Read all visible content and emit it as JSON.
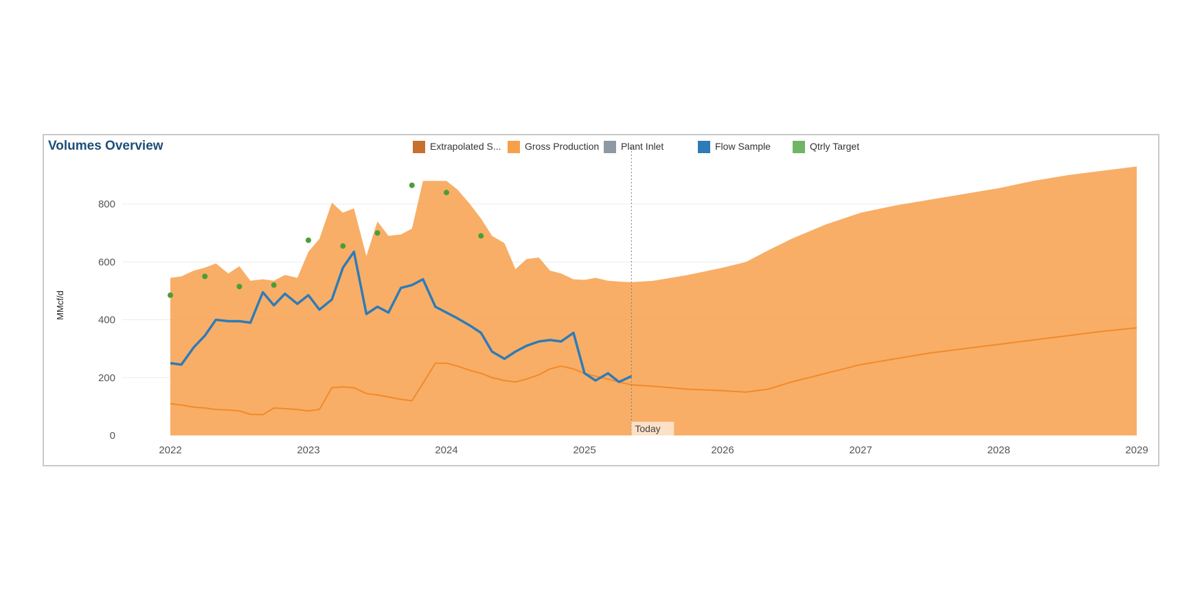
{
  "panel": {
    "title": "Volumes Overview"
  },
  "legend": [
    {
      "label": "Extrapolated S...",
      "color": "#c8702e"
    },
    {
      "label": "Gross Production",
      "color": "#f7a04b"
    },
    {
      "label": "Plant Inlet",
      "color": "#8e99a3"
    },
    {
      "label": "Flow Sample",
      "color": "#2e7bb8"
    },
    {
      "label": "Qtrly Target",
      "color": "#6fb565"
    }
  ],
  "today_label": "Today",
  "chart_data": {
    "type": "area",
    "title": "Volumes Overview",
    "xlabel": "",
    "ylabel": "MMcf/d",
    "xlim": [
      2022,
      2029
    ],
    "ylim": [
      0,
      900
    ],
    "x_ticks": [
      "2022",
      "2023",
      "2024",
      "2025",
      "2026",
      "2027",
      "2028",
      "2029"
    ],
    "y_ticks": [
      "0",
      "200",
      "400",
      "600",
      "800"
    ],
    "grid": true,
    "legend_position": "top",
    "today_x": 2025.34,
    "series": [
      {
        "name": "Gross Production",
        "type": "area",
        "color": "#f7a04b",
        "x": [
          2022.0,
          2022.08,
          2022.17,
          2022.25,
          2022.33,
          2022.42,
          2022.5,
          2022.58,
          2022.67,
          2022.75,
          2022.83,
          2022.92,
          2023.0,
          2023.08,
          2023.17,
          2023.25,
          2023.33,
          2023.42,
          2023.5,
          2023.58,
          2023.67,
          2023.75,
          2023.83,
          2023.92,
          2024.0,
          2024.08,
          2024.17,
          2024.25,
          2024.33,
          2024.42,
          2024.5,
          2024.58,
          2024.67,
          2024.75,
          2024.83,
          2024.92,
          2025.0,
          2025.08,
          2025.17,
          2025.25,
          2025.34,
          2025.5,
          2025.75,
          2026.0,
          2026.17,
          2026.33,
          2026.5,
          2026.75,
          2027.0,
          2027.25,
          2027.5,
          2027.75,
          2028.0,
          2028.25,
          2028.5,
          2028.75,
          2029.0
        ],
        "values": [
          545,
          550,
          570,
          580,
          595,
          560,
          585,
          535,
          540,
          535,
          555,
          545,
          635,
          680,
          805,
          770,
          785,
          620,
          740,
          690,
          695,
          715,
          880,
          880,
          880,
          850,
          800,
          750,
          690,
          665,
          575,
          610,
          615,
          570,
          560,
          540,
          538,
          545,
          535,
          532,
          530,
          535,
          555,
          580,
          600,
          640,
          680,
          730,
          770,
          795,
          815,
          835,
          855,
          880,
          900,
          915,
          930
        ]
      },
      {
        "name": "Extrapolated S...",
        "type": "line",
        "color": "#f7a04b",
        "x": [
          2022.0,
          2022.08,
          2022.17,
          2022.25,
          2022.33,
          2022.42,
          2022.5,
          2022.58,
          2022.67,
          2022.75,
          2022.83,
          2022.92,
          2023.0,
          2023.08,
          2023.17,
          2023.25,
          2023.33,
          2023.42,
          2023.5,
          2023.58,
          2023.67,
          2023.75,
          2023.83,
          2023.92,
          2024.0,
          2024.08,
          2024.17,
          2024.25,
          2024.33,
          2024.42,
          2024.5,
          2024.58,
          2024.67,
          2024.75,
          2024.83,
          2024.92,
          2025.0,
          2025.08,
          2025.17,
          2025.25,
          2025.34,
          2025.5,
          2025.75,
          2026.0,
          2026.17,
          2026.33,
          2026.5,
          2026.75,
          2027.0,
          2027.25,
          2027.5,
          2027.75,
          2028.0,
          2028.25,
          2028.5,
          2028.75,
          2029.0
        ],
        "values": [
          110,
          105,
          98,
          95,
          90,
          88,
          85,
          73,
          72,
          95,
          93,
          90,
          85,
          90,
          165,
          168,
          165,
          145,
          140,
          133,
          125,
          120,
          180,
          250,
          250,
          240,
          225,
          215,
          200,
          190,
          185,
          195,
          210,
          230,
          240,
          230,
          215,
          205,
          195,
          185,
          175,
          170,
          160,
          155,
          150,
          160,
          185,
          215,
          245,
          265,
          285,
          300,
          315,
          330,
          345,
          360,
          372
        ]
      },
      {
        "name": "Flow Sample",
        "type": "line",
        "color": "#2e7bb8",
        "x": [
          2022.0,
          2022.08,
          2022.17,
          2022.25,
          2022.33,
          2022.42,
          2022.5,
          2022.58,
          2022.67,
          2022.75,
          2022.83,
          2022.92,
          2023.0,
          2023.08,
          2023.17,
          2023.25,
          2023.33,
          2023.42,
          2023.5,
          2023.58,
          2023.67,
          2023.75,
          2023.83,
          2023.92,
          2024.0,
          2024.08,
          2024.17,
          2024.25,
          2024.33,
          2024.42,
          2024.5,
          2024.58,
          2024.67,
          2024.75,
          2024.83,
          2024.92,
          2025.0,
          2025.08,
          2025.17,
          2025.25,
          2025.34
        ],
        "values": [
          250,
          245,
          305,
          345,
          400,
          395,
          395,
          390,
          495,
          450,
          490,
          455,
          485,
          435,
          470,
          580,
          635,
          420,
          445,
          425,
          510,
          520,
          540,
          445,
          425,
          405,
          380,
          355,
          290,
          265,
          290,
          310,
          325,
          330,
          325,
          355,
          215,
          190,
          215,
          185,
          205
        ]
      },
      {
        "name": "Qtrly Target",
        "type": "scatter",
        "color": "#4a9e3a",
        "x": [
          2022.0,
          2022.25,
          2022.5,
          2022.75,
          2023.0,
          2023.25,
          2023.5,
          2023.75,
          2024.0,
          2024.25
        ],
        "values": [
          485,
          550,
          515,
          520,
          675,
          655,
          700,
          865,
          840,
          690
        ]
      }
    ]
  }
}
